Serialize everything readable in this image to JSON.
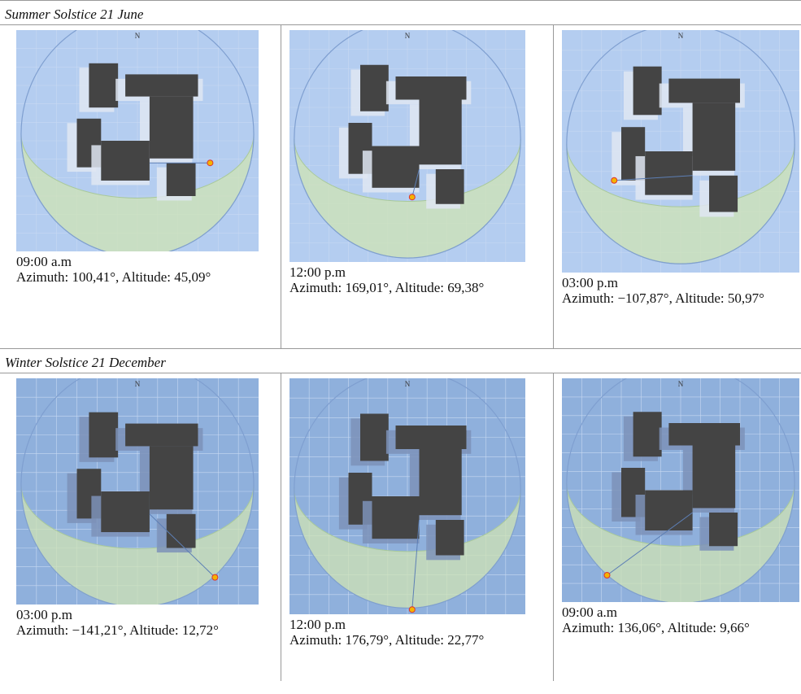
{
  "sections": [
    {
      "title": "Summer Solstice 21 June",
      "cells": [
        {
          "time": "09:00 a.m",
          "text": "Azimuth: 100,41°, Altitude: 45,09°"
        },
        {
          "time": "12:00 p.m",
          "text": "Azimuth: 169,01°, Altitude: 69,38°"
        },
        {
          "time": "03:00 p.m",
          "text": "Azimuth: −107,87°, Altitude: 50,97°"
        }
      ]
    },
    {
      "title": "Winter Solstice 21 December",
      "cells": [
        {
          "time": "03:00 p.m",
          "text": "Azimuth: −141,21°, Altitude: 12,72°"
        },
        {
          "time": "12:00 p.m",
          "text": "Azimuth: 176,79°, Altitude: 22,77°"
        },
        {
          "time": "09:00 a.m",
          "text": "Azimuth: 136,06°, Altitude: 9,66°"
        }
      ]
    }
  ]
}
